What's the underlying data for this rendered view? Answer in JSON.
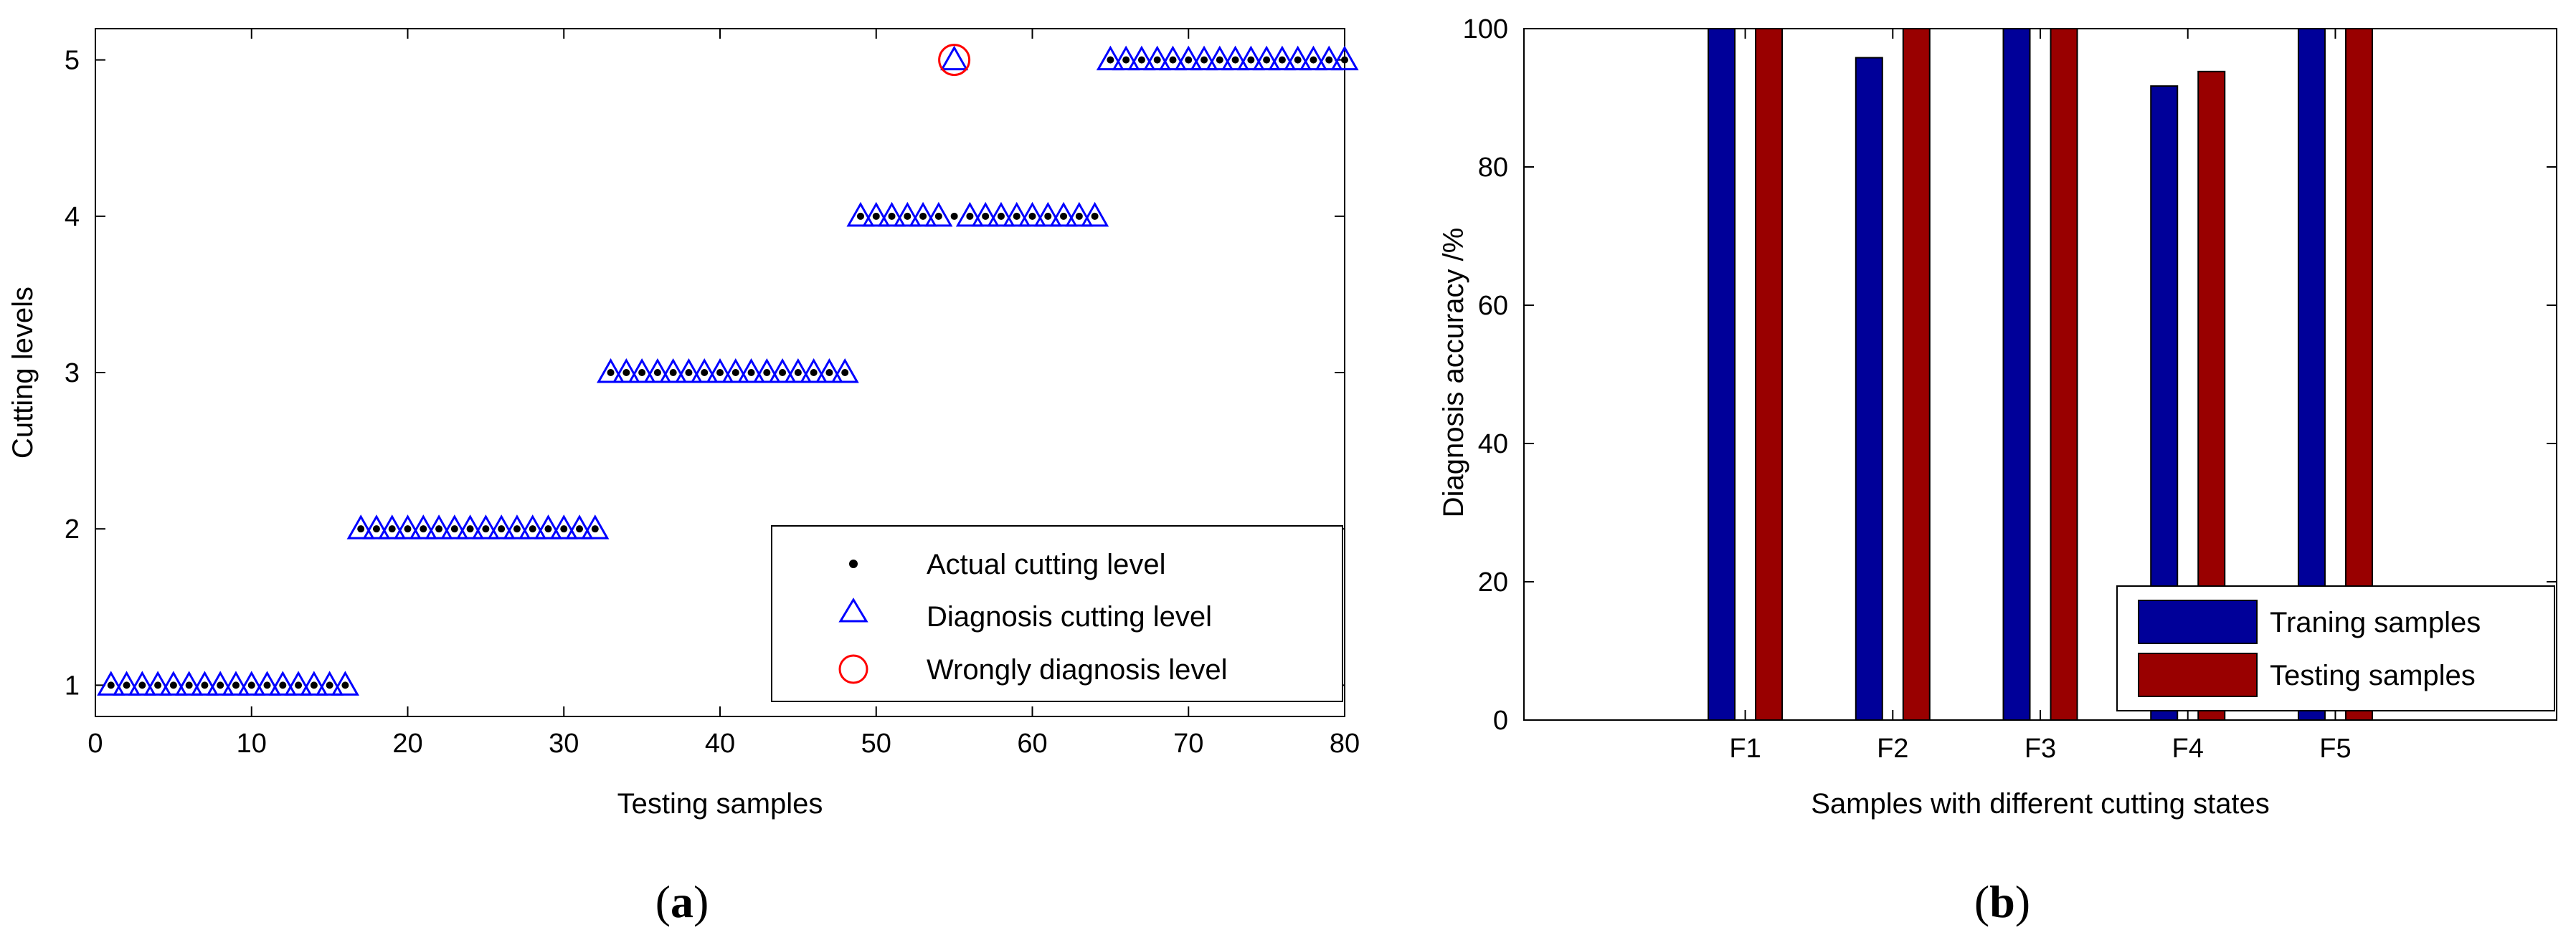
{
  "chart_data": [
    {
      "type": "scatter",
      "panel_label": "a",
      "xlabel": "Testing samples",
      "ylabel": "Cutting levels",
      "xlim": [
        0,
        80
      ],
      "ylim": [
        0.8,
        5.2
      ],
      "xticks": [
        0,
        10,
        20,
        30,
        40,
        50,
        60,
        70,
        80
      ],
      "yticks": [
        1,
        2,
        3,
        4,
        5
      ],
      "series": [
        {
          "name": "Actual cutting level",
          "marker": "dot",
          "color": "#000000",
          "x": [
            1,
            2,
            3,
            4,
            5,
            6,
            7,
            8,
            9,
            10,
            11,
            12,
            13,
            14,
            15,
            16,
            17,
            18,
            19,
            20,
            21,
            22,
            23,
            24,
            25,
            26,
            27,
            28,
            29,
            30,
            31,
            32,
            33,
            34,
            35,
            36,
            37,
            38,
            39,
            40,
            41,
            42,
            43,
            44,
            45,
            46,
            47,
            48,
            49,
            50,
            51,
            52,
            53,
            54,
            55,
            56,
            57,
            58,
            59,
            60,
            61,
            62,
            63,
            64,
            65,
            66,
            67,
            68,
            69,
            70,
            71,
            72,
            73,
            74,
            75,
            76,
            77,
            78,
            79,
            80
          ],
          "y": [
            1,
            1,
            1,
            1,
            1,
            1,
            1,
            1,
            1,
            1,
            1,
            1,
            1,
            1,
            1,
            1,
            2,
            2,
            2,
            2,
            2,
            2,
            2,
            2,
            2,
            2,
            2,
            2,
            2,
            2,
            2,
            2,
            3,
            3,
            3,
            3,
            3,
            3,
            3,
            3,
            3,
            3,
            3,
            3,
            3,
            3,
            3,
            3,
            4,
            4,
            4,
            4,
            4,
            4,
            4,
            4,
            4,
            4,
            4,
            4,
            4,
            4,
            4,
            4,
            5,
            5,
            5,
            5,
            5,
            5,
            5,
            5,
            5,
            5,
            5,
            5,
            5,
            5,
            5,
            5
          ]
        },
        {
          "name": "Diagnosis cutting level",
          "marker": "triangle",
          "color": "#0000ff",
          "x": [
            1,
            2,
            3,
            4,
            5,
            6,
            7,
            8,
            9,
            10,
            11,
            12,
            13,
            14,
            15,
            16,
            17,
            18,
            19,
            20,
            21,
            22,
            23,
            24,
            25,
            26,
            27,
            28,
            29,
            30,
            31,
            32,
            33,
            34,
            35,
            36,
            37,
            38,
            39,
            40,
            41,
            42,
            43,
            44,
            45,
            46,
            47,
            48,
            49,
            50,
            51,
            52,
            53,
            54,
            55,
            56,
            57,
            58,
            59,
            60,
            61,
            62,
            63,
            64,
            65,
            66,
            67,
            68,
            69,
            70,
            71,
            72,
            73,
            74,
            75,
            76,
            77,
            78,
            79,
            80
          ],
          "y": [
            1,
            1,
            1,
            1,
            1,
            1,
            1,
            1,
            1,
            1,
            1,
            1,
            1,
            1,
            1,
            1,
            2,
            2,
            2,
            2,
            2,
            2,
            2,
            2,
            2,
            2,
            2,
            2,
            2,
            2,
            2,
            2,
            3,
            3,
            3,
            3,
            3,
            3,
            3,
            3,
            3,
            3,
            3,
            3,
            3,
            3,
            3,
            3,
            4,
            4,
            4,
            4,
            4,
            4,
            5,
            4,
            4,
            4,
            4,
            4,
            4,
            4,
            4,
            4,
            5,
            5,
            5,
            5,
            5,
            5,
            5,
            5,
            5,
            5,
            5,
            5,
            5,
            5,
            5,
            5
          ]
        },
        {
          "name": "Wrongly diagnosis level",
          "marker": "circle",
          "color": "#ff0000",
          "x": [
            55
          ],
          "y": [
            5
          ]
        }
      ]
    },
    {
      "type": "bar",
      "panel_label": "b",
      "xlabel": "Samples with different cutting states",
      "ylabel": "Diagnosis accuracy /%",
      "categories": [
        "F1",
        "F2",
        "F3",
        "F4",
        "F5"
      ],
      "ylim": [
        0,
        100
      ],
      "yticks": [
        0,
        20,
        40,
        60,
        80,
        100
      ],
      "series": [
        {
          "name": "Traning samples",
          "color": "#000099",
          "values": [
            100,
            95.8,
            100,
            91.7,
            100
          ]
        },
        {
          "name": "Testing samples",
          "color": "#990000",
          "values": [
            100,
            100,
            100,
            93.8,
            100
          ]
        }
      ]
    }
  ]
}
